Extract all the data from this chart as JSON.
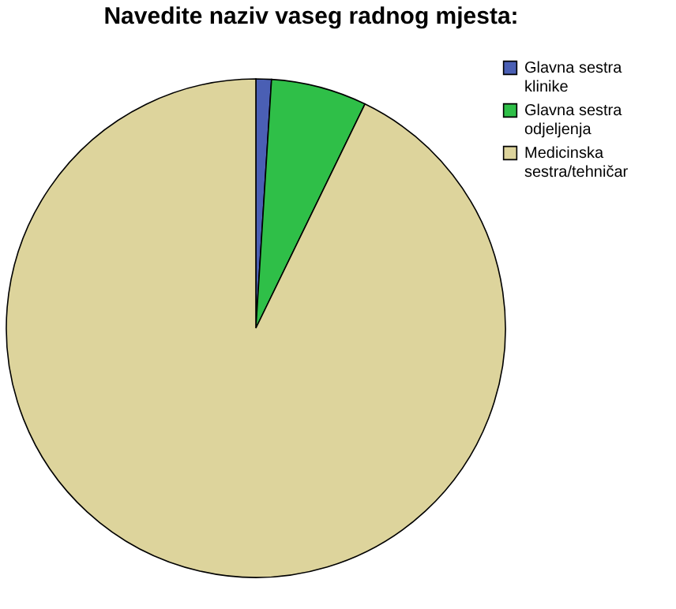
{
  "chart_data": {
    "type": "pie",
    "title": "Navedite naziv vaseg radnog mjesta:",
    "categories": [
      "Glavna sestra klinike",
      "Glavna sestra odjeljenja",
      "Medicinska sestra/tehničar"
    ],
    "values": [
      1.0,
      6.2,
      92.8
    ],
    "colors": [
      "#4a5fb4",
      "#2fbf48",
      "#ddd49c"
    ],
    "legend": "top right"
  }
}
